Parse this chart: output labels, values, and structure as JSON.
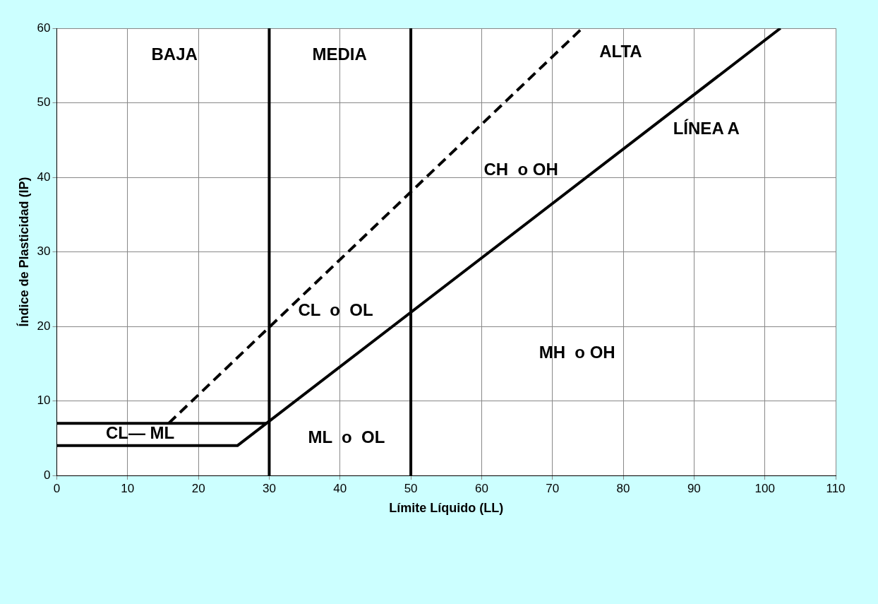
{
  "chart_data": {
    "type": "line",
    "xlabel": "Límite Líquido (LL)",
    "ylabel": "Índice de Plasticidad (IP)",
    "xlim": [
      0,
      110
    ],
    "xticks": [
      0,
      10,
      20,
      30,
      40,
      50,
      60,
      70,
      80,
      90,
      100,
      110
    ],
    "ylim": [
      0,
      60
    ],
    "yticks": [
      0,
      10,
      20,
      30,
      40,
      50,
      60
    ],
    "grid": true,
    "legend": false,
    "marker": "none",
    "line_style": "solid",
    "series": [
      {
        "color": "#000000",
        "x": [
          0,
          25.5,
          102.2
        ],
        "values": [
          4,
          4,
          60
        ]
      },
      {
        "color": "#000000",
        "x": [
          0,
          29.6
        ],
        "values": [
          7,
          7
        ]
      },
      {
        "color": "#000000",
        "x": [
          15.8,
          74.2
        ],
        "values": [
          7,
          60
        ],
        "line_style": "dashed"
      },
      {
        "color": "#000000",
        "x": [
          30,
          30
        ],
        "values": [
          0,
          60
        ]
      },
      {
        "color": "#000000",
        "x": [
          50,
          50
        ],
        "values": [
          0,
          60
        ]
      }
    ],
    "annotations": [
      "BAJA",
      "MEDIA",
      "ALTA",
      "LÍNEA A",
      "CH  o OH",
      "CL  o  OL",
      "MH  o OH",
      "ML  o  OL",
      "CL— ML"
    ]
  }
}
